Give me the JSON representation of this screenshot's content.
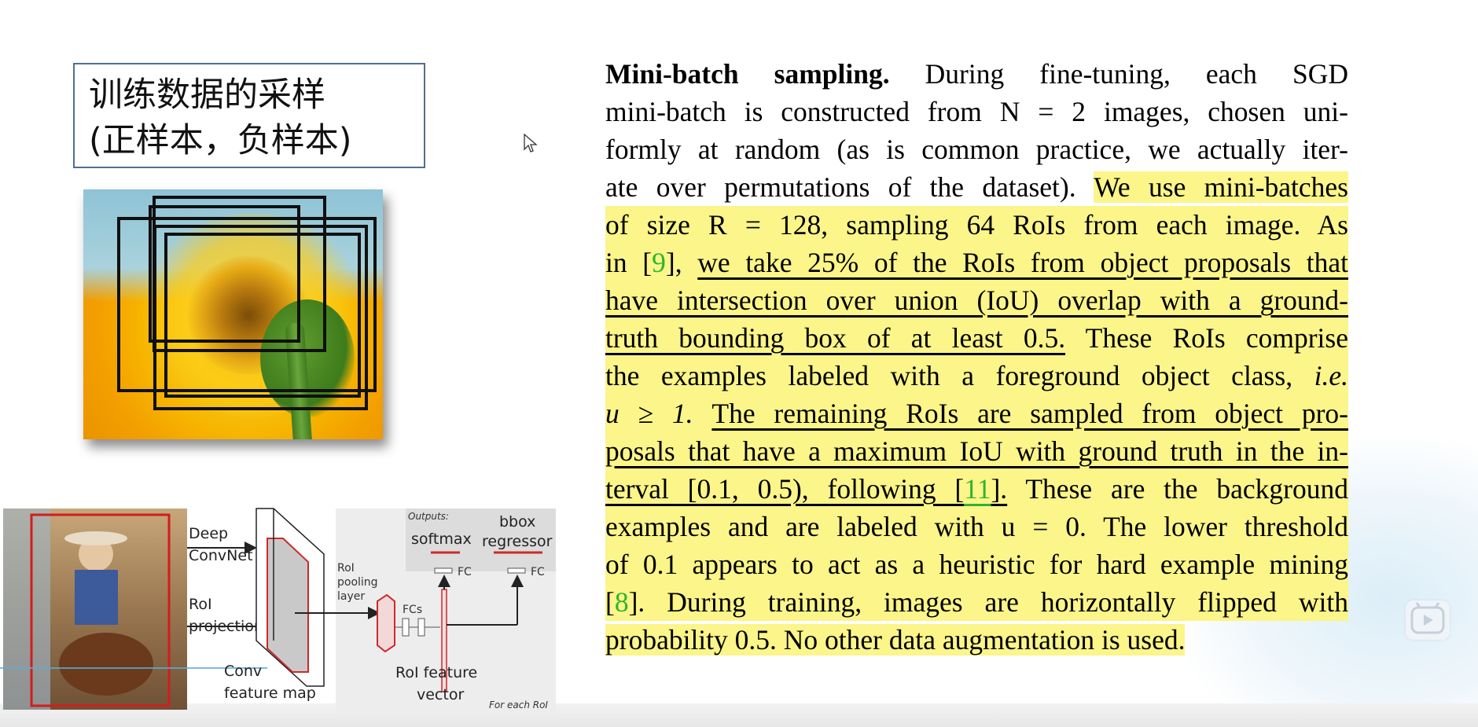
{
  "slide": {
    "title_lines": [
      "训练数据的采样",
      "(正样本，负样本)"
    ]
  },
  "diagram": {
    "labels": {
      "deep": "Deep",
      "convnet": "ConvNet",
      "roi": "RoI",
      "projection": "projection",
      "conv": "Conv",
      "feature_map": "feature map",
      "roi_pool_1": "RoI",
      "roi_pool_2": "pooling",
      "roi_pool_3": "layer",
      "fcs": "FCs",
      "roi_feat_1": "RoI feature",
      "roi_feat_2": "vector",
      "outputs": "Outputs:",
      "softmax": "softmax",
      "bbox_1": "bbox",
      "bbox_2": "regressor",
      "fc_a": "FC",
      "fc_b": "FC",
      "for_each": "For each RoI"
    }
  },
  "paper": {
    "l1a": "Mini-batch sampling.",
    "l1b": " During fine-tuning, each SGD",
    "l2": "mini-batch is constructed from N = 2 images, chosen uni-",
    "l3": "formly at random (as is common practice, we actually iter-",
    "l4a": "ate over permutations of the dataset). ",
    "l4b": "We use mini-batches",
    "l5": "of size R = 128, sampling 64 RoIs from each image. As",
    "l6a": "in [",
    "l6cite": "9",
    "l6b": "], ",
    "l6c": "we take 25% of the RoIs from object proposals that",
    "l7": "have intersection over union (IoU) overlap with a ground-",
    "l8a": "truth bounding box of at least 0.5.",
    "l8b": " These RoIs comprise",
    "l9a": "the examples labeled with a foreground object class, ",
    "l9b": "i.e.",
    "l10a": "u ≥ 1. ",
    "l10b": "The remaining RoIs are sampled from object pro-",
    "l11": "posals that have a maximum IoU with ground truth in the in-",
    "l12a": "terval [0.1, 0.5), following [",
    "l12cite": "11",
    "l12b": "].",
    "l12c": " These are the background",
    "l13": "examples and are labeled with u = 0. The lower threshold",
    "l14": "of 0.1 appears to act as a heuristic for hard example mining",
    "l15a": "[",
    "l15cite": "8",
    "l15b": "]. During training, images are horizontally flipped with",
    "l16": "probability 0.5. No other data augmentation is used."
  },
  "colors": {
    "highlight": "#fbf58a",
    "citation": "#2db52d",
    "title_border": "#4f6f93"
  }
}
